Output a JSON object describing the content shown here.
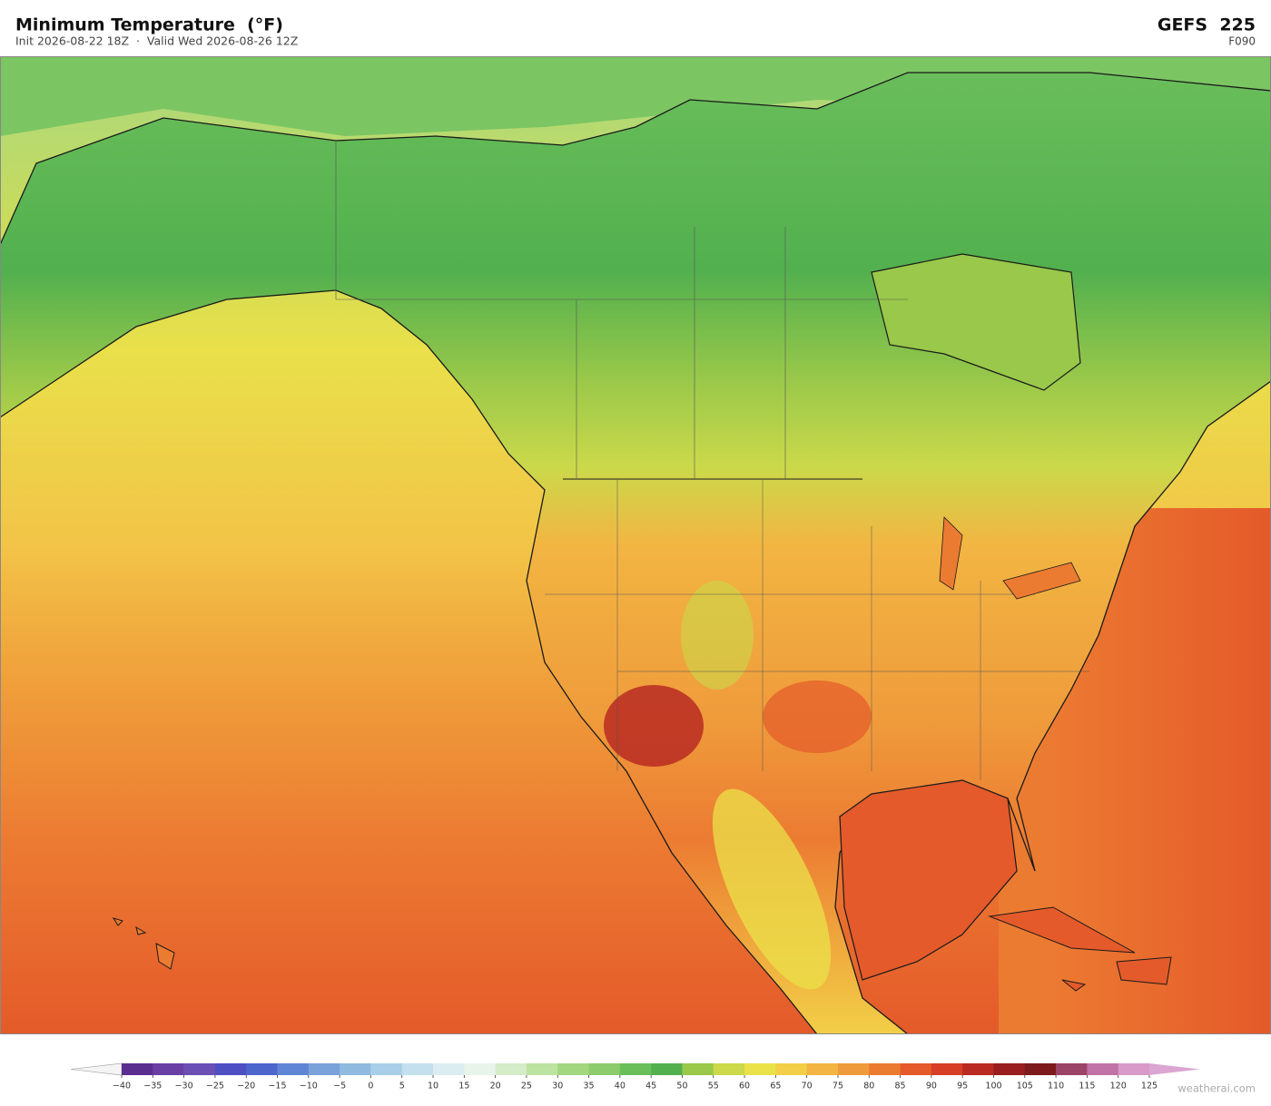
{
  "header": {
    "title": "Minimum Temperature  (°F)",
    "subtitle": "Init 2026-08-22 18Z  ·  Valid Wed 2026-08-26 12Z",
    "model": "GEFS  225",
    "forecast_hour": "F090"
  },
  "colorbar": {
    "ticks": [
      {
        "value": -40,
        "label": "−40"
      },
      {
        "value": -35,
        "label": "−35"
      },
      {
        "value": -30,
        "label": "−30"
      },
      {
        "value": -25,
        "label": "−25"
      },
      {
        "value": -20,
        "label": "−20"
      },
      {
        "value": -15,
        "label": "−15"
      },
      {
        "value": -10,
        "label": "−10"
      },
      {
        "value": -5,
        "label": "−5"
      },
      0,
      5,
      10,
      15,
      20,
      25,
      30,
      35,
      40,
      45,
      50,
      55,
      60,
      65,
      70,
      75,
      80,
      85,
      90,
      95,
      100,
      105,
      110,
      115,
      120,
      125
    ],
    "colors": [
      "#5a2d91",
      "#6a3fa5",
      "#6b4fb5",
      "#4f4fc4",
      "#4d66cc",
      "#5f86d4",
      "#79a2da",
      "#90badf",
      "#a9cfe8",
      "#c4e0ee",
      "#dcedf1",
      "#e8f4ea",
      "#d4ecc8",
      "#bde3a0",
      "#a3d77f",
      "#8dcc6c",
      "#6bbf5b",
      "#52b04e",
      "#99c84a",
      "#cbd94a",
      "#ebe24a",
      "#f2cf47",
      "#f2b542",
      "#ef9b3b",
      "#ec7b32",
      "#e45a2a",
      "#d63e26",
      "#b92a22",
      "#981e1f",
      "#7c1a1c",
      "#9c4468",
      "#c172a6",
      "#d89ac8"
    ],
    "under_color": "#f4f4f4",
    "over_color": "#dca6d2"
  },
  "watermark": "weatherai.com"
}
